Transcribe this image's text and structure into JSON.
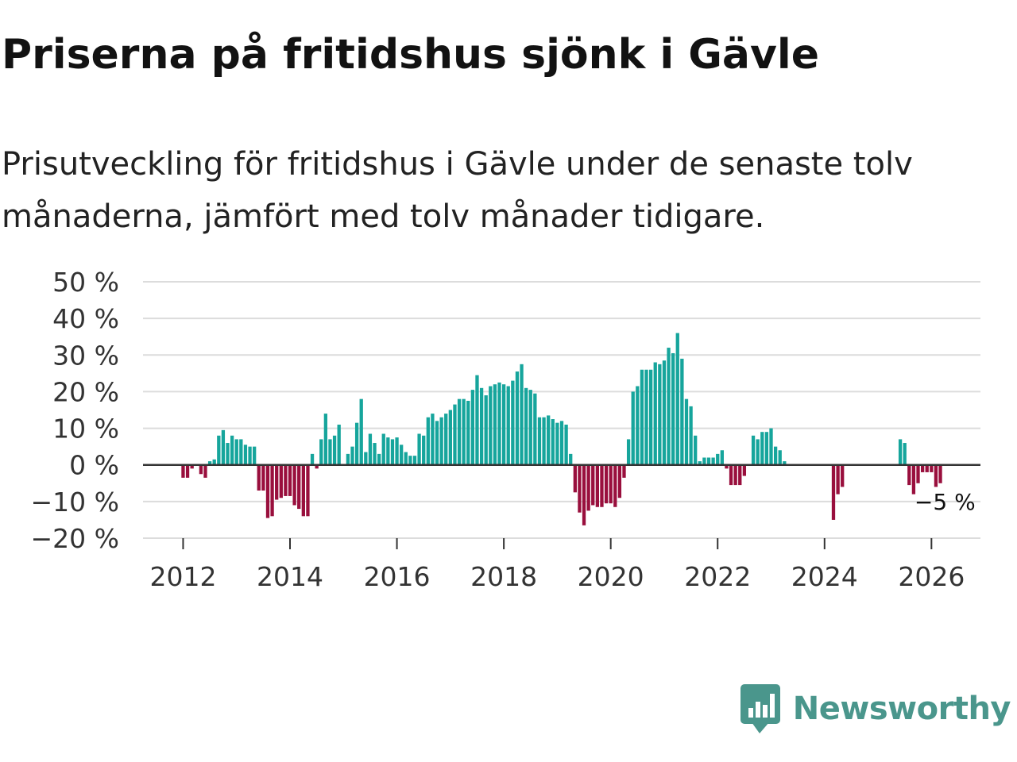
{
  "header": {
    "title": "Priserna på fritidshus sjönk i Gävle",
    "subtitle": "Prisutveckling för fritidshus i Gävle under de senaste tolv månaderna, jämfört med tolv månader tidigare."
  },
  "brand": {
    "name": "Newsworthy",
    "color": "#4a968c",
    "icon": "newsworthy-logo-icon"
  },
  "chart_data": {
    "type": "bar",
    "title": "Priserna på fritidshus sjönk i Gävle",
    "subtitle": "Prisutveckling för fritidshus i Gävle under de senaste tolv månaderna, jämfört med tolv månader tidigare.",
    "xlabel": "",
    "ylabel": "",
    "ylim": [
      -20,
      50
    ],
    "xlim": [
      "2011-04",
      "2026-12"
    ],
    "yticks": [
      50,
      40,
      30,
      20,
      10,
      0,
      -10,
      -20
    ],
    "ytick_labels": [
      "50 %",
      "40 %",
      "30 %",
      "20 %",
      "10 %",
      "0 %",
      "−10 %",
      "−20 %"
    ],
    "xticks": [
      "2012-01",
      "2014-01",
      "2016-01",
      "2018-01",
      "2020-01",
      "2022-01",
      "2024-01",
      "2026-01"
    ],
    "xtick_labels": [
      "2012",
      "2014",
      "2016",
      "2018",
      "2020",
      "2022",
      "2024",
      "2026"
    ],
    "grid": true,
    "legend": "none",
    "colors": {
      "positive": "#16a59c",
      "negative": "#990f3d",
      "grid": "#dcdcdc",
      "zero_line": "#333333"
    },
    "annotation": {
      "label": "−5 %",
      "x": "2026-02",
      "y": -5
    },
    "series": [
      {
        "start": "2012-01",
        "values": [
          -3.5,
          -3.5,
          -1,
          0,
          -2.5,
          -3.5,
          1,
          1.5,
          8,
          9.5,
          6,
          8,
          7,
          7,
          5.5,
          5,
          5,
          -7,
          -7,
          -14.5,
          -14,
          -9.5,
          -9,
          -8.5,
          -8.5,
          -11,
          -12,
          -14,
          -14,
          3,
          -1,
          7,
          14,
          7,
          8,
          11,
          0,
          3,
          5,
          11.5,
          18,
          3.5,
          8.5,
          6,
          3,
          8.5,
          7.5,
          7,
          7.5,
          5.5,
          3.5,
          2.5,
          2.5,
          8.5,
          8,
          13,
          14,
          12,
          13,
          14,
          15,
          16.5,
          18,
          18,
          17.5,
          20.5,
          24.5,
          21,
          19,
          21.5,
          22,
          22.5,
          22,
          21.5,
          23,
          25.5,
          27.5,
          21,
          20.5,
          19.5,
          13,
          13,
          13.5,
          12.5,
          11.5,
          12,
          11,
          3,
          -7.5,
          -13,
          -16.5,
          -12.5,
          -11,
          -11.5,
          -11.5,
          -10.5,
          -10.5,
          -11.5,
          -9,
          -3.5,
          7,
          20,
          21.5,
          26,
          26,
          26,
          28,
          27.5,
          28.5,
          32,
          30.5,
          36,
          29,
          18,
          16,
          8,
          1,
          2,
          2,
          2,
          3,
          4,
          -1,
          -5.5,
          -5.5,
          -5.5,
          -3,
          0,
          8,
          7,
          9,
          9,
          10,
          5,
          4,
          1
        ]
      },
      {
        "start": "2024-03",
        "values": [
          -15,
          -8,
          -6
        ]
      },
      {
        "start": "2025-06",
        "values": [
          7,
          6,
          -5.5,
          -8,
          -5,
          -2,
          -2,
          -2,
          -6,
          -5
        ]
      }
    ]
  }
}
